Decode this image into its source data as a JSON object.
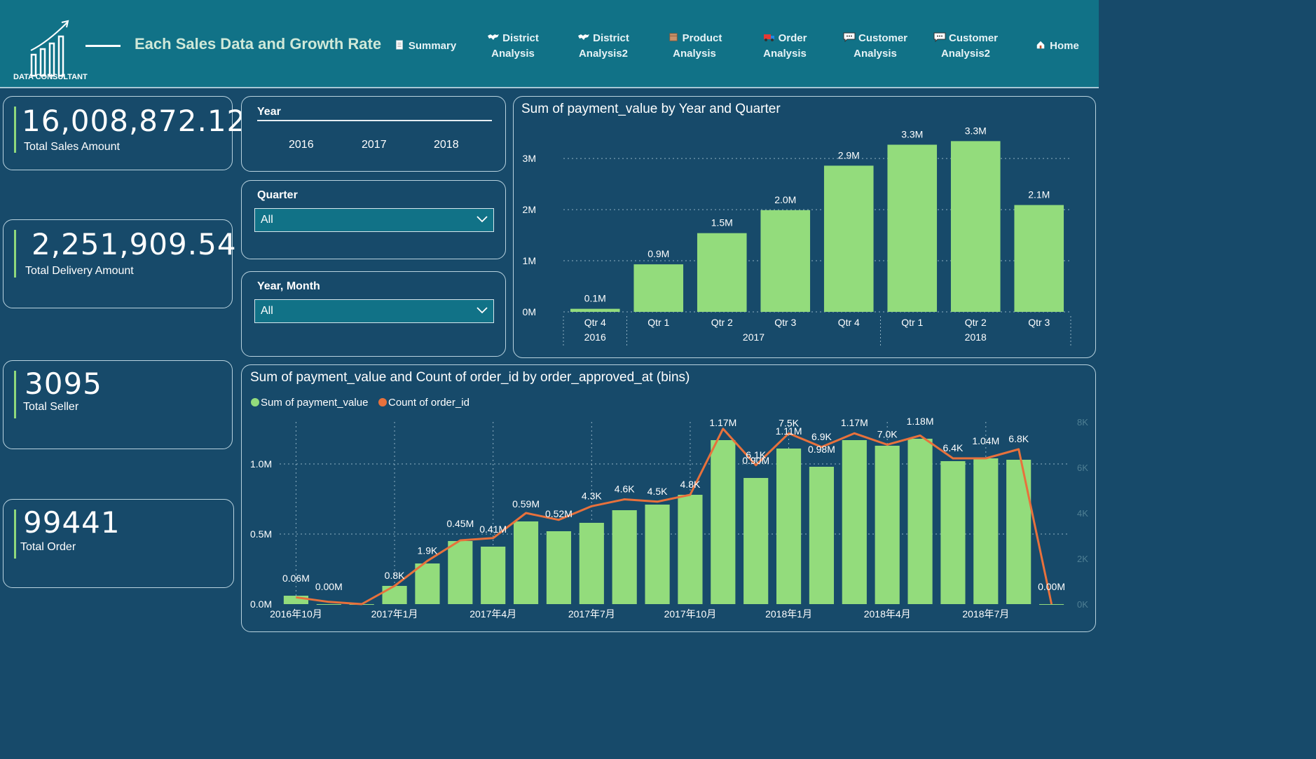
{
  "header": {
    "logo_text": "DATA CONSULTANT",
    "title": "Each Sales Data and Growth Rate",
    "nav": [
      {
        "label": "Summary",
        "icon": "document-icon"
      },
      {
        "label": "District Analysis",
        "line1": "District",
        "line2": "Analysis",
        "icon": "world-map-icon"
      },
      {
        "label": "District Analysis2",
        "line1": "District",
        "line2": "Analysis2",
        "icon": "world-map-icon"
      },
      {
        "label": "Product Analysis",
        "line1": "Product",
        "line2": "Analysis",
        "icon": "box-icon"
      },
      {
        "label": "Order Analysis",
        "line1": "Order",
        "line2": "Analysis",
        "icon": "truck-icon"
      },
      {
        "label": "Customer Analysis",
        "line1": "Customer",
        "line2": "Analysis",
        "icon": "chat-icon"
      },
      {
        "label": "Customer Analysis2",
        "line1": "Customer",
        "line2": "Analysis2",
        "icon": "chat-icon"
      },
      {
        "label": "Home",
        "icon": "home-icon"
      }
    ]
  },
  "kpis": [
    {
      "value": "16,008,872.12",
      "label": "Total Sales Amount"
    },
    {
      "value": "2,251,909.54",
      "label": "Total Delivery Amount"
    },
    {
      "value": "3095",
      "label": "Total Seller"
    },
    {
      "value": "99441",
      "label": "Total Order"
    }
  ],
  "slicers": {
    "year": {
      "title": "Year",
      "options": [
        "2016",
        "2017",
        "2018"
      ]
    },
    "quarter": {
      "title": "Quarter",
      "value": "All"
    },
    "year_month": {
      "title": "Year, Month",
      "value": "All"
    }
  },
  "colors": {
    "bar": "#93dc7c",
    "line": "#e8713c",
    "accent": "#117287"
  },
  "chart_data": [
    {
      "type": "bar",
      "title": "Sum of payment_value by Year and Quarter",
      "categories": [
        "Qtr 4",
        "Qtr 1",
        "Qtr 2",
        "Qtr 3",
        "Qtr 4",
        "Qtr 1",
        "Qtr 2",
        "Qtr 3"
      ],
      "groups": [
        {
          "label": "2016",
          "count": 1
        },
        {
          "label": "2017",
          "count": 4
        },
        {
          "label": "2018",
          "count": 3
        }
      ],
      "values": [
        0.06,
        0.93,
        1.54,
        1.99,
        2.86,
        3.27,
        3.34,
        2.09
      ],
      "data_labels": [
        "0.1M",
        "0.9M",
        "1.5M",
        "2.0M",
        "2.9M",
        "3.3M",
        "3.3M",
        "2.1M"
      ],
      "yticks": [
        "0M",
        "1M",
        "2M",
        "3M"
      ],
      "ylim": [
        0,
        3.4
      ],
      "units": "M",
      "grid": true
    },
    {
      "type": "bar+line",
      "title": "Sum of payment_value and Count of order_id by order_approved_at (bins)",
      "legend": [
        "Sum of payment_value",
        "Count of order_id"
      ],
      "xticks": [
        "2016年10月",
        "2017年1月",
        "2017年4月",
        "2017年7月",
        "2017年10月",
        "2018年1月",
        "2018年4月",
        "2018年7月"
      ],
      "yticks_left": [
        "0.0M",
        "0.5M",
        "1.0M"
      ],
      "yticks_right": [
        "0K",
        "2K",
        "4K",
        "6K",
        "8K"
      ],
      "ylim_left": [
        0,
        1.3
      ],
      "ylim_right": [
        0,
        8
      ],
      "bars": [
        0.06,
        0.0,
        0.0,
        0.13,
        0.29,
        0.45,
        0.41,
        0.59,
        0.52,
        0.58,
        0.67,
        0.71,
        0.78,
        1.17,
        0.9,
        1.11,
        0.98,
        1.17,
        1.13,
        1.18,
        1.02,
        1.04,
        1.03,
        0.0
      ],
      "bar_labels": [
        "0.06M",
        "0.00M",
        "",
        "",
        "",
        "0.45M",
        "0.41M",
        "0.59M",
        "0.52M",
        "",
        "",
        "",
        "",
        "1.17M",
        "0.90M",
        "1.11M",
        "0.98M",
        "1.17M",
        "",
        "1.18M",
        "",
        "1.04M",
        "",
        "0.00M"
      ],
      "line": [
        0.3,
        0.1,
        0.0,
        0.8,
        1.9,
        2.8,
        2.9,
        4.0,
        3.7,
        4.3,
        4.6,
        4.5,
        4.8,
        7.7,
        6.1,
        7.5,
        6.9,
        7.5,
        7.0,
        7.4,
        6.4,
        6.4,
        6.8,
        0.0
      ],
      "line_labels": [
        "",
        "",
        "",
        "0.8K",
        "1.9K",
        "",
        "",
        "",
        "",
        "4.3K",
        "4.6K",
        "4.5K",
        "4.8K",
        "",
        "6.1K",
        "7.5K",
        "6.9K",
        "",
        "7.0K",
        "",
        "6.4K",
        "",
        "6.8K",
        ""
      ]
    }
  ]
}
